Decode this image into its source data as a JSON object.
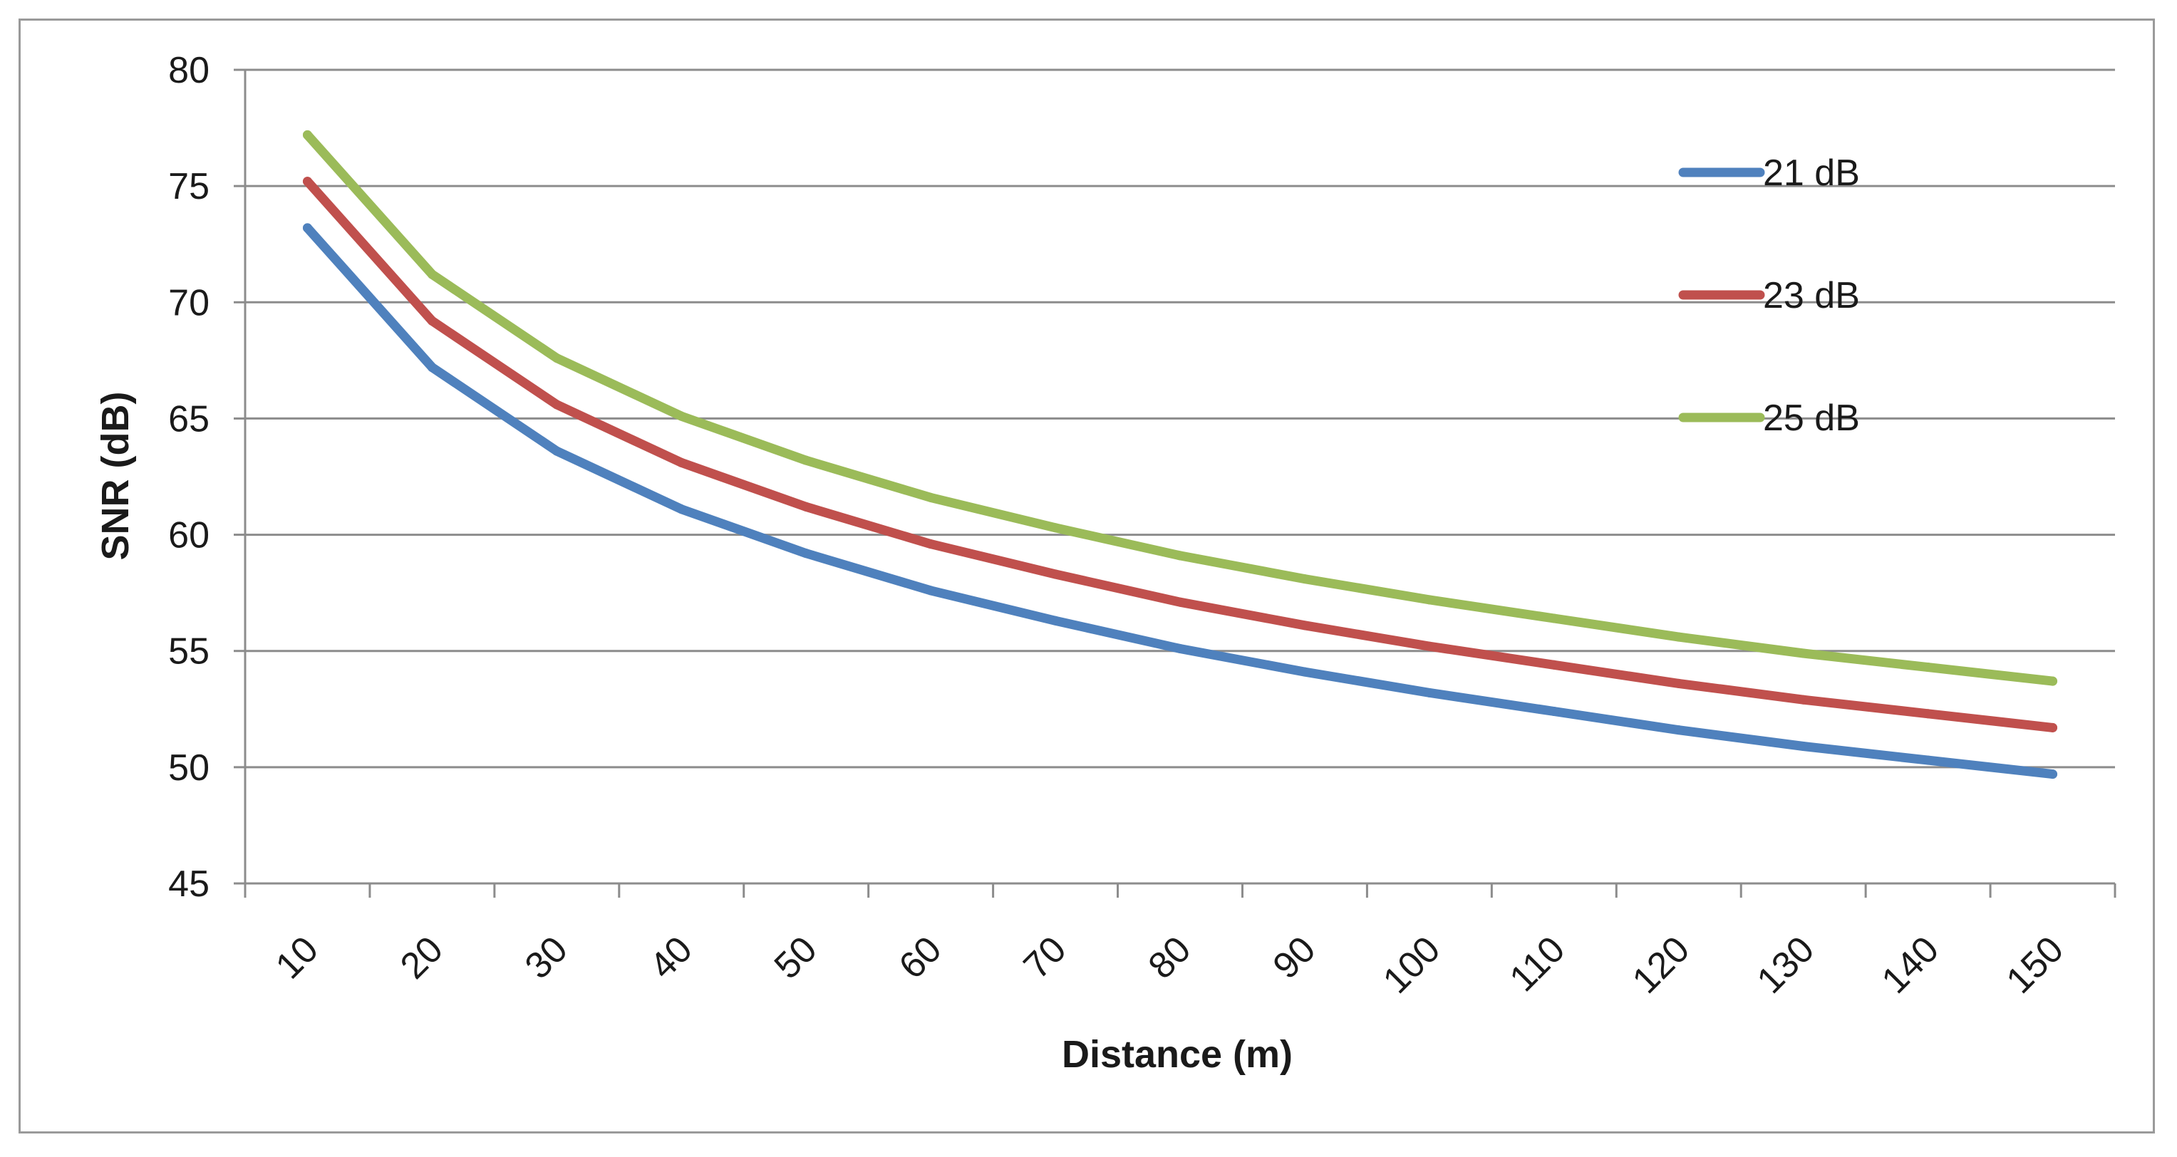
{
  "chart_data": {
    "type": "line",
    "xlabel": "Distance (m)",
    "ylabel": "SNR (dB)",
    "x": [
      10,
      20,
      30,
      40,
      50,
      60,
      70,
      80,
      90,
      100,
      110,
      120,
      130,
      140,
      150
    ],
    "x_tick_labels": [
      "10",
      "20",
      "30",
      "40",
      "50",
      "60",
      "70",
      "80",
      "90",
      "100",
      "110",
      "120",
      "130",
      "140",
      "150"
    ],
    "ylim": [
      45,
      80
    ],
    "y_ticks": [
      45,
      50,
      55,
      60,
      65,
      70,
      75,
      80
    ],
    "grid": "horizontal",
    "legend_position": "right",
    "series": [
      {
        "name": "21 dB",
        "color": "#4f81bd",
        "values": [
          73.2,
          67.2,
          63.6,
          61.1,
          59.2,
          57.6,
          56.3,
          55.1,
          54.1,
          53.2,
          52.4,
          51.6,
          50.9,
          50.3,
          49.7
        ]
      },
      {
        "name": "23 dB",
        "color": "#c0504d",
        "values": [
          75.2,
          69.2,
          65.6,
          63.1,
          61.2,
          59.6,
          58.3,
          57.1,
          56.1,
          55.2,
          54.4,
          53.6,
          52.9,
          52.3,
          51.7
        ]
      },
      {
        "name": "25 dB",
        "color": "#9bbb59",
        "values": [
          77.2,
          71.2,
          67.6,
          65.1,
          63.2,
          61.6,
          60.3,
          59.1,
          58.1,
          57.2,
          56.4,
          55.6,
          54.9,
          54.3,
          53.7
        ]
      }
    ],
    "colors": {
      "gridline": "#8c8c8c",
      "axis": "#8c8c8c",
      "frame": "#9a9a9a"
    }
  }
}
